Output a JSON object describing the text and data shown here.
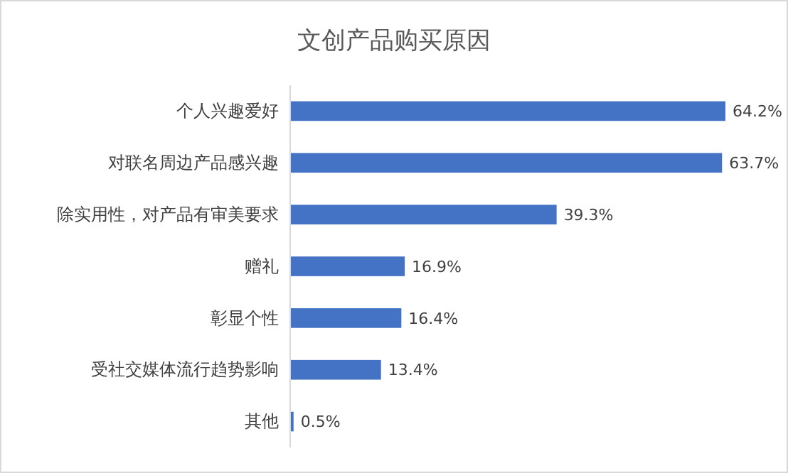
{
  "chart_data": {
    "type": "bar",
    "title": "文创产品购买原因",
    "orientation": "horizontal",
    "categories": [
      "个人兴趣爱好",
      "对联名周边产品感兴趣",
      "除实用性，对产品有审美要求",
      "赠礼",
      "彰显个性",
      "受社交媒体流行趋势影响",
      "其他"
    ],
    "values": [
      64.2,
      63.7,
      39.3,
      16.9,
      16.4,
      13.4,
      0.5
    ],
    "value_labels": [
      "64.2%",
      "63.7%",
      "39.3%",
      "16.9%",
      "16.4%",
      "13.4%",
      "0.5%"
    ],
    "color": "#4472c4"
  }
}
